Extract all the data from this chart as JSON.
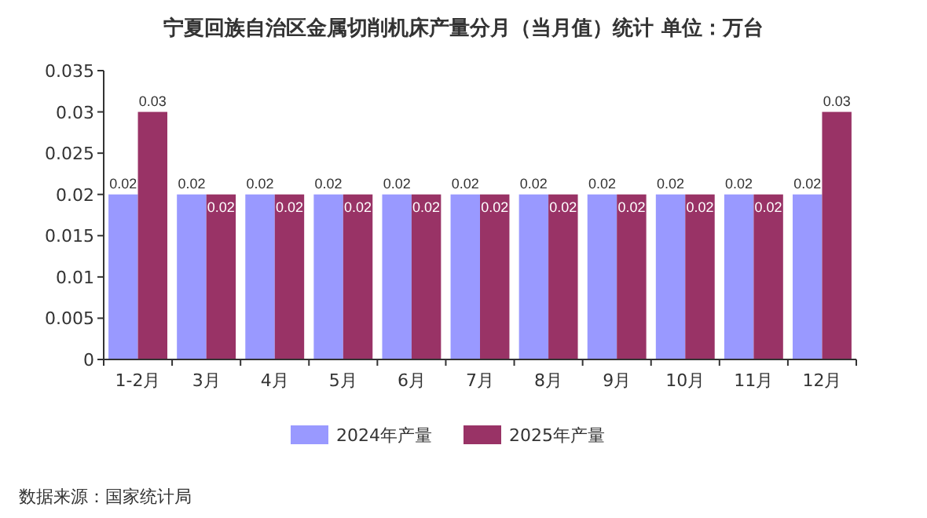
{
  "chart_data": {
    "type": "bar",
    "title": "宁夏回族自治区金属切削机床产量分月（当月值）统计  单位：万台",
    "categories": [
      "1-2月",
      "3月",
      "4月",
      "5月",
      "6月",
      "7月",
      "8月",
      "9月",
      "10月",
      "11月",
      "12月"
    ],
    "series": [
      {
        "name": "2024年产量",
        "color": "#9999ff",
        "values": [
          0.02,
          0.02,
          0.02,
          0.02,
          0.02,
          0.02,
          0.02,
          0.02,
          0.02,
          0.02,
          0.02
        ]
      },
      {
        "name": "2025年产量",
        "color": "#993366",
        "values": [
          0.03,
          0.02,
          0.02,
          0.02,
          0.02,
          0.02,
          0.02,
          0.02,
          0.02,
          0.02,
          0.03
        ]
      }
    ],
    "ylim": [
      0,
      0.035
    ],
    "yticks": [
      0,
      0.005,
      0.01,
      0.015,
      0.02,
      0.025,
      0.03,
      0.035
    ],
    "data_labels": true,
    "legend": "bottom",
    "grid": false,
    "annotations": [
      "数据来源：国家统计局"
    ]
  }
}
